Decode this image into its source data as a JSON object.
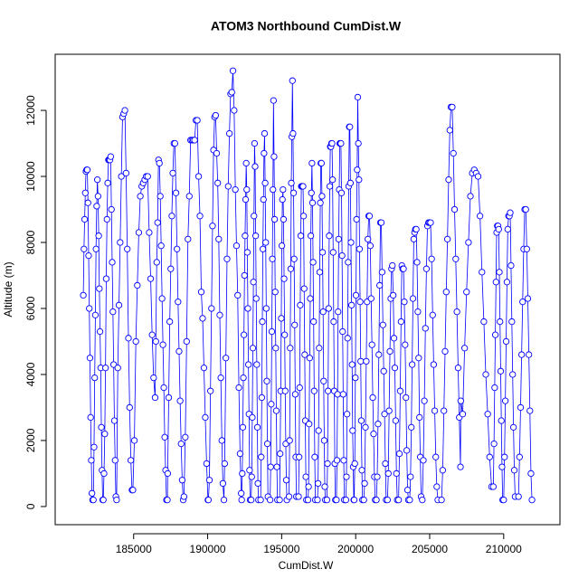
{
  "chart_data": {
    "type": "line",
    "title": "ATOM3 Northbound CumDist.W",
    "x_label": "CumDist.W",
    "y_label": "Altitude (m)",
    "color": "#0000ff",
    "marker": "circle",
    "xlim": [
      179700,
      213800
    ],
    "ylim": [
      -550,
      13700
    ],
    "xticks": [
      185000,
      190000,
      195000,
      200000,
      205000,
      210000
    ],
    "yticks": [
      0,
      2000,
      4000,
      6000,
      8000,
      10000,
      12000
    ],
    "x": [
      181600,
      181645,
      181690,
      181735,
      181780,
      181825,
      181870,
      181915,
      181960,
      182005,
      182050,
      182095,
      182140,
      182185,
      182230,
      182280,
      182325,
      182370,
      182415,
      182460,
      182505,
      182550,
      182595,
      182640,
      182685,
      182730,
      182775,
      182820,
      182865,
      182910,
      182950,
      183000,
      183050,
      183100,
      183150,
      183200,
      183250,
      183300,
      183350,
      183400,
      183450,
      183500,
      183550,
      183600,
      183650,
      183700,
      183750,
      183800,
      183850,
      183930,
      184010,
      184090,
      184170,
      184250,
      184330,
      184410,
      184490,
      184570,
      184650,
      184730,
      184810,
      184890,
      184950,
      185050,
      185150,
      185250,
      185350,
      185450,
      185550,
      185650,
      185750,
      185850,
      185950,
      186050,
      186150,
      186250,
      186350,
      186450,
      186500,
      186560,
      186620,
      186680,
      186740,
      186800,
      186860,
      186920,
      186980,
      187040,
      187100,
      187160,
      187220,
      187280,
      187300,
      187370,
      187440,
      187510,
      187580,
      187650,
      187720,
      187790,
      187860,
      187930,
      188000,
      188070,
      188140,
      188210,
      188280,
      188350,
      188400,
      188490,
      188580,
      188670,
      188760,
      188850,
      188940,
      189030,
      189120,
      189210,
      189300,
      189390,
      189480,
      189570,
      189660,
      189750,
      189840,
      189930,
      190020,
      190050,
      190120,
      190190,
      190260,
      190330,
      190400,
      190470,
      190540,
      190610,
      190680,
      190750,
      190820,
      190890,
      190960,
      191030,
      191100,
      191150,
      191230,
      191310,
      191390,
      191470,
      191550,
      191630,
      191710,
      191790,
      191870,
      191950,
      192030,
      192110,
      192190,
      192270,
      192300,
      192338,
      192376,
      192414,
      192452,
      192490,
      192528,
      192566,
      192604,
      192642,
      192680,
      192718,
      192756,
      192794,
      192832,
      192870,
      192940,
      192978,
      193016,
      193054,
      193092,
      193130,
      193168,
      193206,
      193244,
      193282,
      193320,
      193358,
      193396,
      193434,
      193580,
      193618,
      193656,
      193694,
      193732,
      193770,
      193808,
      193846,
      193884,
      193922,
      193960,
      193998,
      194036,
      194074,
      194220,
      194258,
      194296,
      194334,
      194372,
      194410,
      194448,
      194486,
      194524,
      194562,
      194600,
      194638,
      194676,
      194714,
      194860,
      194898,
      194936,
      194974,
      195012,
      195050,
      195088,
      195126,
      195164,
      195202,
      195240,
      195278,
      195316,
      195354,
      195500,
      195538,
      195576,
      195614,
      195652,
      195690,
      195728,
      195766,
      195804,
      195842,
      195880,
      195918,
      195956,
      195994,
      196140,
      196178,
      196216,
      196254,
      196292,
      196330,
      196368,
      196406,
      196444,
      196482,
      196520,
      196558,
      196596,
      196634,
      196672,
      196780,
      196818,
      196856,
      196894,
      196932,
      196970,
      197008,
      197046,
      197084,
      197122,
      197160,
      197198,
      197236,
      197274,
      197420,
      197458,
      197496,
      197534,
      197572,
      197610,
      197648,
      197686,
      197724,
      197762,
      197800,
      197838,
      197876,
      197914,
      197952,
      198060,
      198098,
      198136,
      198174,
      198212,
      198250,
      198288,
      198326,
      198364,
      198402,
      198440,
      198478,
      198516,
      198554,
      198592,
      198630,
      198700,
      198738,
      198776,
      198814,
      198852,
      198890,
      198928,
      198966,
      199004,
      199042,
      199080,
      199118,
      199156,
      199194,
      199232,
      199340,
      199378,
      199416,
      199454,
      199492,
      199530,
      199568,
      199606,
      199644,
      199682,
      199720,
      199758,
      199796,
      199834,
      199872,
      199900,
      199940,
      199980,
      200020,
      200060,
      200100,
      200140,
      200180,
      200220,
      200260,
      200300,
      200340,
      200380,
      200420,
      200460,
      200550,
      200605,
      200660,
      200715,
      200770,
      200825,
      200880,
      200935,
      200990,
      201045,
      201100,
      201155,
      201210,
      201265,
      201320,
      201400,
      201455,
      201510,
      201565,
      201620,
      201675,
      201730,
      201785,
      201840,
      201895,
      201950,
      202005,
      202060,
      202150,
      202205,
      202260,
      202315,
      202370,
      202425,
      202480,
      202535,
      202590,
      202645,
      202700,
      202755,
      202810,
      202900,
      202955,
      203010,
      203065,
      203120,
      203175,
      203230,
      203285,
      203340,
      203395,
      203450,
      203505,
      203560,
      203650,
      203705,
      203760,
      203815,
      203870,
      203925,
      203980,
      204035,
      204090,
      204145,
      204200,
      204255,
      204310,
      204365,
      204420,
      204500,
      204570,
      204640,
      204710,
      204780,
      204850,
      204920,
      204990,
      205060,
      205130,
      205200,
      205270,
      205340,
      205410,
      205480,
      205550,
      205800,
      205880,
      205960,
      206040,
      206120,
      206200,
      206280,
      206360,
      206440,
      206520,
      206600,
      206680,
      206760,
      206840,
      206920,
      207000,
      207080,
      207100,
      207230,
      207360,
      207490,
      207620,
      207750,
      207880,
      208010,
      208140,
      208270,
      208400,
      208530,
      208660,
      208790,
      208920,
      209050,
      209180,
      209300,
      209345,
      209390,
      209435,
      209480,
      209525,
      209570,
      209615,
      209660,
      209705,
      209750,
      209795,
      209840,
      209885,
      209930,
      210000,
      210055,
      210110,
      210165,
      210220,
      210275,
      210330,
      210385,
      210440,
      210495,
      210550,
      210605,
      210660,
      210715,
      210770,
      211000,
      211070,
      211140,
      211210,
      211280,
      211350,
      211420,
      211490,
      211560,
      211630,
      211700,
      211770,
      211840,
      211910
    ],
    "values": [
      6400,
      7800,
      8700,
      9500,
      10150,
      10200,
      10200,
      9200,
      7600,
      6000,
      4500,
      2700,
      1400,
      400,
      200,
      200,
      1800,
      3900,
      5800,
      7800,
      9100,
      9900,
      9400,
      8200,
      6600,
      5300,
      4200,
      2400,
      1100,
      200,
      200,
      1000,
      2200,
      4200,
      6900,
      8700,
      9800,
      10500,
      10500,
      10500,
      10600,
      9000,
      7400,
      5900,
      4300,
      2600,
      1400,
      300,
      200,
      4200,
      6100,
      8000,
      10000,
      11800,
      11900,
      12000,
      10100,
      7800,
      5100,
      3000,
      1400,
      500,
      500,
      2000,
      5000,
      6700,
      8300,
      9400,
      9700,
      9800,
      9900,
      10000,
      10000,
      8300,
      6900,
      5200,
      3900,
      3300,
      5000,
      7400,
      8600,
      10500,
      10400,
      9400,
      7900,
      6300,
      4900,
      3600,
      2100,
      1100,
      200,
      200,
      1000,
      3300,
      5600,
      7200,
      8800,
      10100,
      11000,
      11000,
      9500,
      7800,
      6200,
      4700,
      3200,
      1900,
      800,
      200,
      300,
      2100,
      5000,
      8100,
      9400,
      11100,
      11100,
      11100,
      11100,
      11700,
      11700,
      10000,
      8800,
      6500,
      5700,
      4200,
      2700,
      1300,
      200,
      200,
      800,
      3500,
      6000,
      8500,
      10800,
      11800,
      11850,
      10700,
      9800,
      8100,
      5800,
      3900,
      2000,
      700,
      200,
      1300,
      4500,
      7500,
      9700,
      11300,
      12500,
      12550,
      13200,
      12000,
      9600,
      7900,
      6400,
      3600,
      1600,
      400,
      200,
      1000,
      2400,
      3900,
      5200,
      7000,
      8200,
      9300,
      10400,
      9600,
      7700,
      6000,
      4300,
      2800,
      1100,
      200,
      200,
      900,
      2700,
      4800,
      6800,
      8800,
      11000,
      10300,
      8200,
      6300,
      4300,
      2400,
      700,
      200,
      200,
      1500,
      3300,
      5600,
      7800,
      9300,
      10700,
      11300,
      9800,
      8000,
      6000,
      3800,
      1900,
      300,
      200,
      1200,
      3100,
      5300,
      7500,
      9600,
      12300,
      10600,
      8700,
      6500,
      4800,
      2900,
      1200,
      200,
      200,
      1600,
      3500,
      5700,
      7900,
      9300,
      9600,
      8700,
      6900,
      5200,
      3500,
      1900,
      800,
      200,
      300,
      2000,
      4800,
      7200,
      9800,
      11200,
      12900,
      11300,
      9500,
      7500,
      5500,
      3400,
      1500,
      300,
      300,
      1500,
      3600,
      6100,
      8200,
      9700,
      9700,
      9700,
      9700,
      8800,
      6600,
      4600,
      2600,
      900,
      200,
      200,
      600,
      2500,
      4500,
      6300,
      8200,
      9500,
      10400,
      9200,
      7400,
      5600,
      3500,
      1500,
      200,
      200,
      700,
      2300,
      4800,
      7100,
      9200,
      10400,
      10400,
      9400,
      7700,
      5900,
      3800,
      2000,
      600,
      200,
      200,
      1300,
      3500,
      6000,
      8200,
      9700,
      10900,
      10900,
      11000,
      11000,
      9900,
      7700,
      5600,
      3500,
      1300,
      200,
      200,
      1400,
      3400,
      5900,
      8100,
      9600,
      11000,
      11000,
      11000,
      9500,
      7600,
      5300,
      3400,
      1400,
      200,
      200,
      900,
      2800,
      5100,
      7400,
      9700,
      11500,
      11500,
      9800,
      8000,
      6100,
      4300,
      2300,
      1200,
      200,
      200,
      1300,
      3900,
      6400,
      8700,
      10200,
      12400,
      11000,
      9900,
      7800,
      6200,
      4400,
      2600,
      1100,
      200,
      200,
      700,
      2400,
      4400,
      6200,
      8100,
      8800,
      8800,
      7900,
      6300,
      4900,
      3300,
      2200,
      900,
      200,
      200,
      900,
      2500,
      4600,
      6700,
      8600,
      8600,
      7100,
      5500,
      4100,
      2800,
      1300,
      200,
      200,
      1000,
      2900,
      4700,
      6300,
      7200,
      7300,
      6400,
      5100,
      4200,
      2600,
      1000,
      200,
      200,
      1600,
      3500,
      5600,
      7300,
      7200,
      7200,
      6200,
      4900,
      3300,
      1700,
      500,
      200,
      200,
      900,
      2400,
      4300,
      6300,
      8100,
      8300,
      8400,
      8400,
      7400,
      5900,
      4500,
      2700,
      1500,
      300,
      200,
      1400,
      3200,
      5400,
      7200,
      8500,
      8600,
      8600,
      8600,
      7500,
      5800,
      4300,
      2900,
      1500,
      600,
      200,
      200,
      1100,
      2900,
      4700,
      6500,
      8100,
      9900,
      11400,
      12100,
      12100,
      10700,
      9000,
      7500,
      5900,
      4200,
      2700,
      1200,
      3200,
      2800,
      4800,
      6500,
      8000,
      9400,
      10100,
      10200,
      10100,
      10000,
      8800,
      7100,
      5600,
      4000,
      2800,
      1500,
      600,
      600,
      1900,
      3600,
      5200,
      6800,
      8300,
      8500,
      8500,
      8400,
      7100,
      5600,
      4100,
      2600,
      1200,
      200,
      200,
      1500,
      3200,
      5000,
      6800,
      8400,
      8800,
      8800,
      8900,
      7300,
      5600,
      4000,
      2400,
      1100,
      300,
      300,
      1500,
      3000,
      4600,
      6200,
      7800,
      9000,
      9000,
      7800,
      6300,
      4600,
      2900,
      1000,
      200
    ]
  }
}
